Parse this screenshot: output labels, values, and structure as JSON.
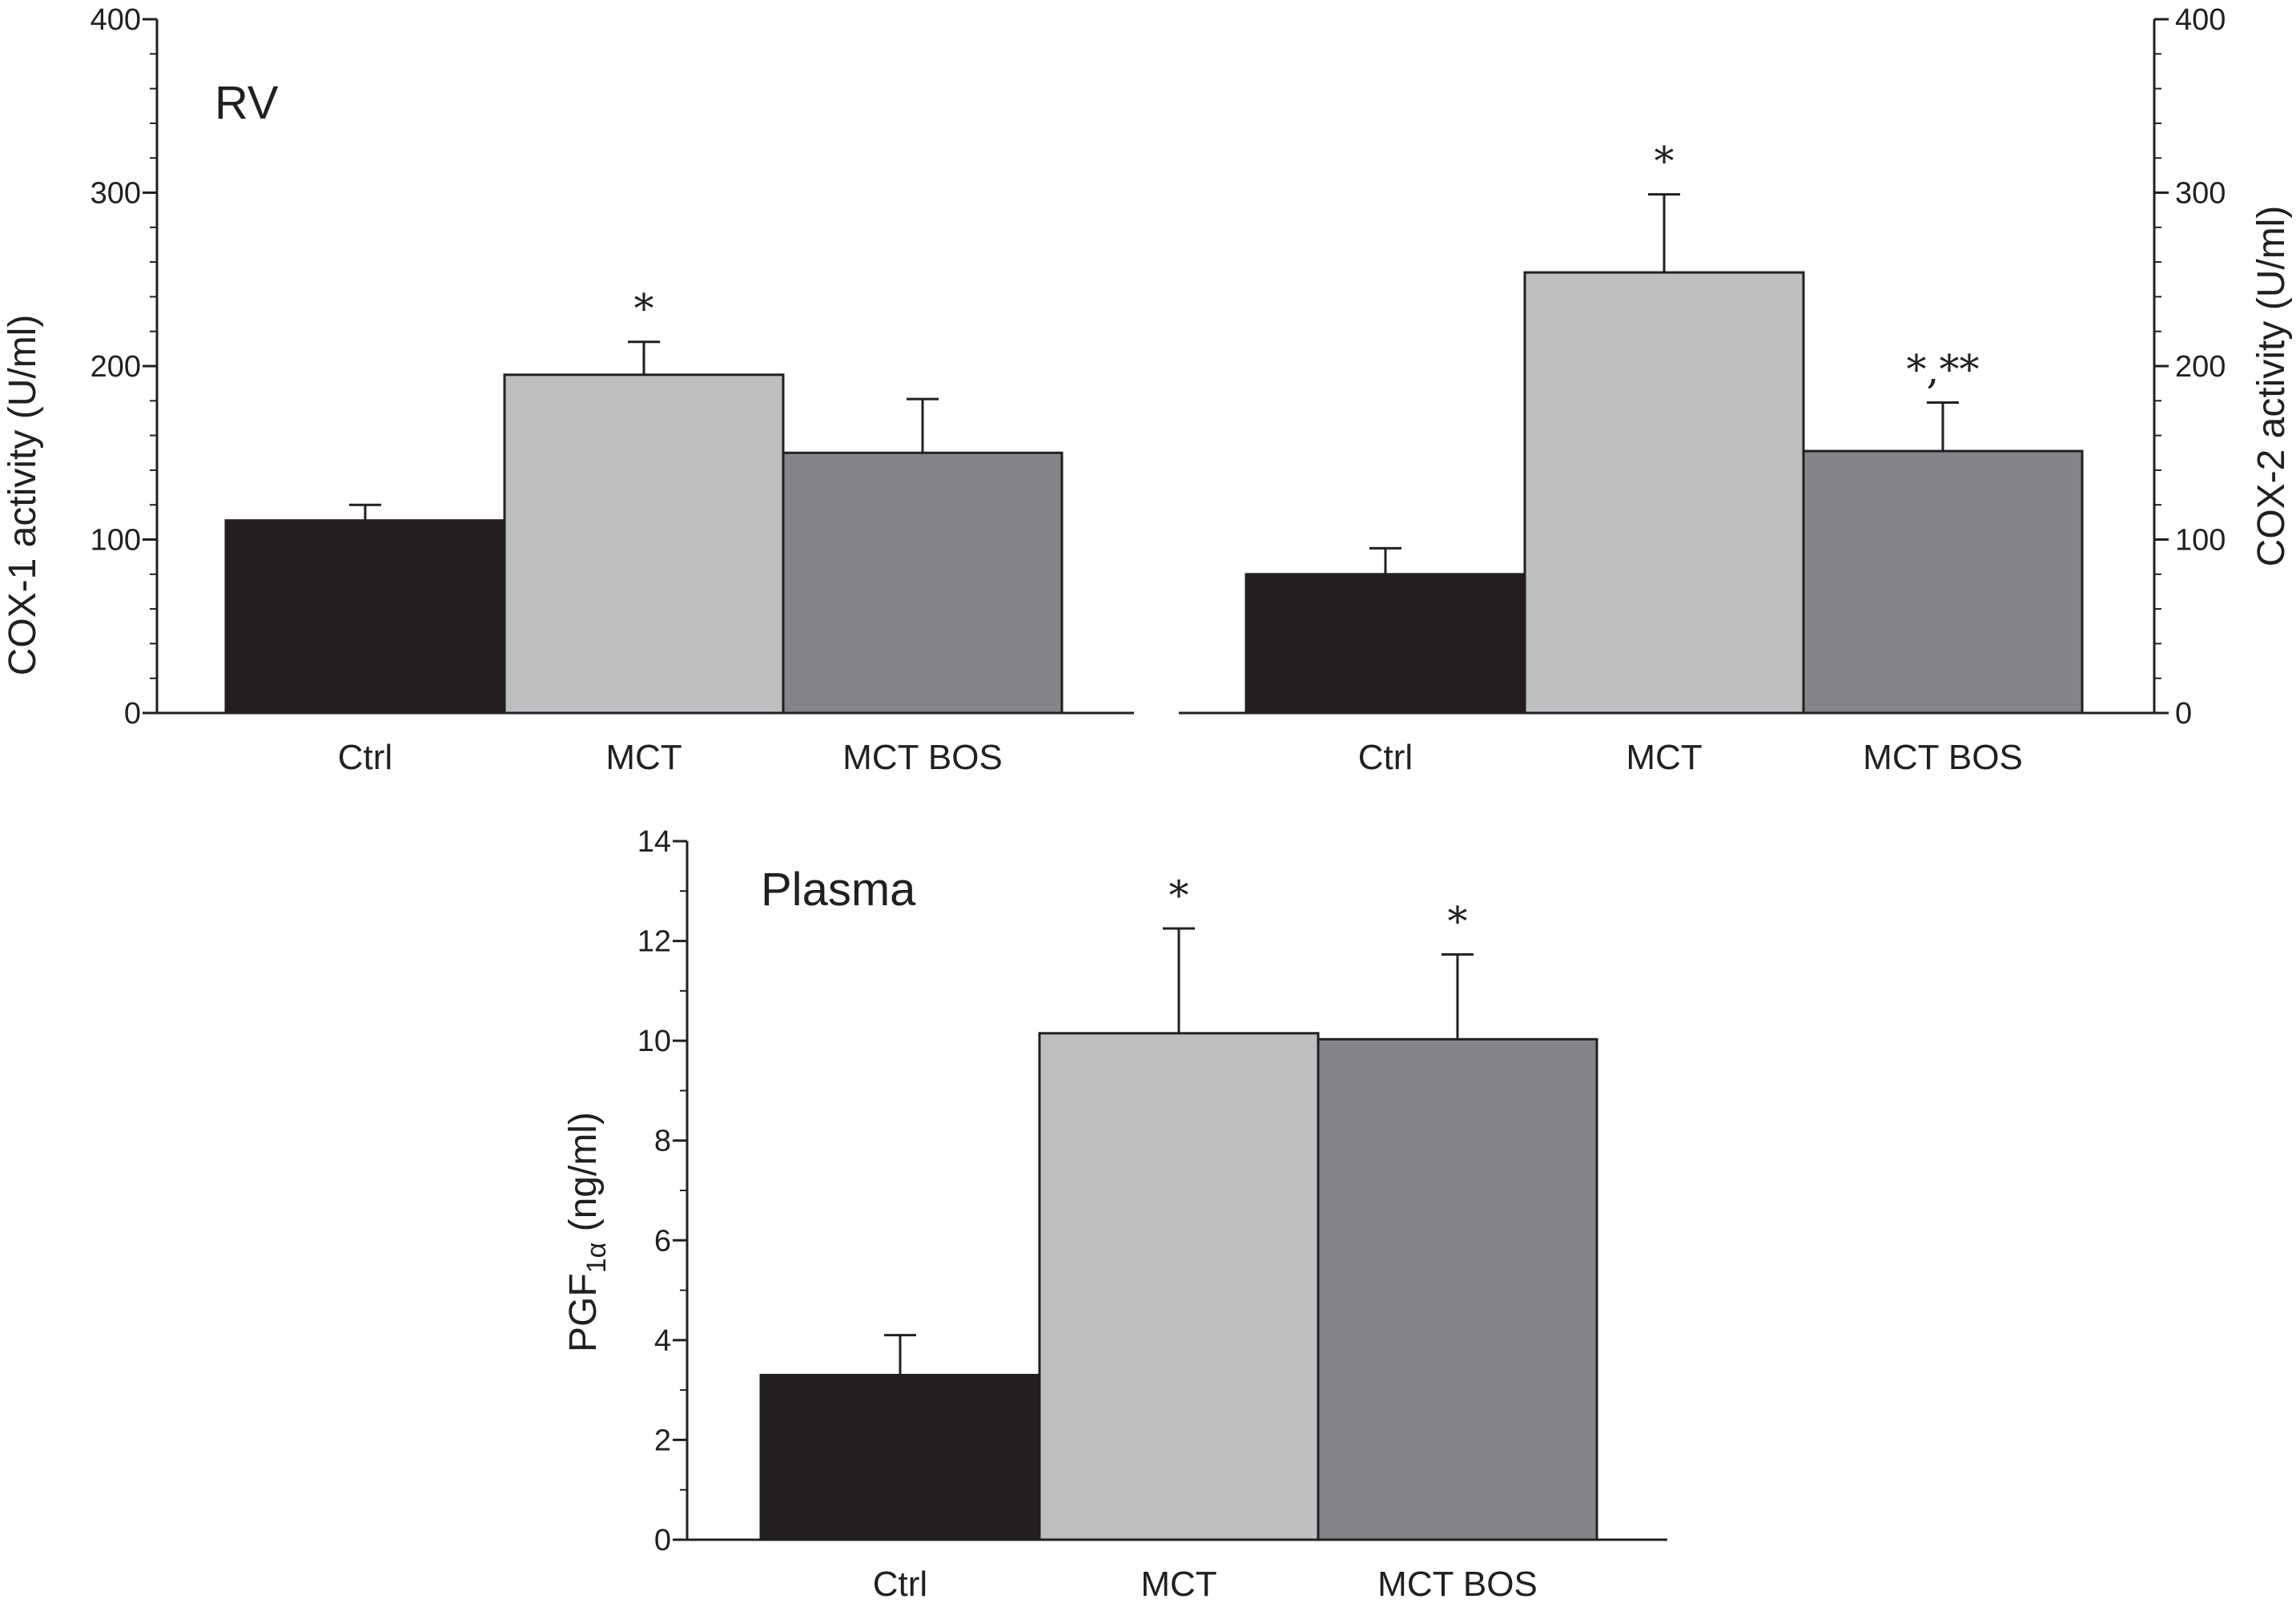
{
  "colors": {
    "ctrl": "#231f20",
    "mct": "#bcbec0",
    "mct_bos": "#848589",
    "ink": "#231f20",
    "background": "#ffffff"
  },
  "chart_data": [
    {
      "type": "bar",
      "panel_label": "RV",
      "title": "",
      "xlabel": "",
      "ylabel": "COX-1 activity (U/ml)",
      "y_axis_side": "left",
      "ylim": [
        0,
        400
      ],
      "yticks": [
        0,
        100,
        200,
        300,
        400
      ],
      "categories": [
        "Ctrl",
        "MCT",
        "MCT BOS"
      ],
      "values": [
        111,
        195,
        150
      ],
      "errors": [
        9,
        19,
        31
      ],
      "annotations": [
        "",
        "*",
        ""
      ],
      "grid": false,
      "legend": "none"
    },
    {
      "type": "bar",
      "panel_label": "",
      "title": "",
      "xlabel": "",
      "ylabel": "COX-2 activity (U/ml)",
      "y_axis_side": "right",
      "ylim": [
        0,
        400
      ],
      "yticks": [
        0,
        100,
        200,
        300,
        400
      ],
      "categories": [
        "Ctrl",
        "MCT",
        "MCT BOS"
      ],
      "values": [
        80,
        254,
        151
      ],
      "errors": [
        15,
        45,
        28
      ],
      "annotations": [
        "",
        "*",
        "*,**"
      ],
      "grid": false,
      "legend": "none"
    },
    {
      "type": "bar",
      "panel_label": "Plasma",
      "title": "",
      "xlabel": "",
      "ylabel": "PGF1α (ng/ml)",
      "ylabel_main": "PGF",
      "ylabel_sub": "1α",
      "ylabel_unit": " (ng/ml)",
      "y_axis_side": "left",
      "ylim": [
        0,
        14
      ],
      "yticks": [
        0,
        2,
        4,
        6,
        8,
        10,
        12,
        14
      ],
      "categories": [
        "Ctrl",
        "MCT",
        "MCT BOS"
      ],
      "values": [
        3.3,
        10.15,
        10.03
      ],
      "errors": [
        0.8,
        2.1,
        1.7
      ],
      "annotations": [
        "",
        "*",
        "*"
      ],
      "grid": false,
      "legend": "none"
    }
  ]
}
